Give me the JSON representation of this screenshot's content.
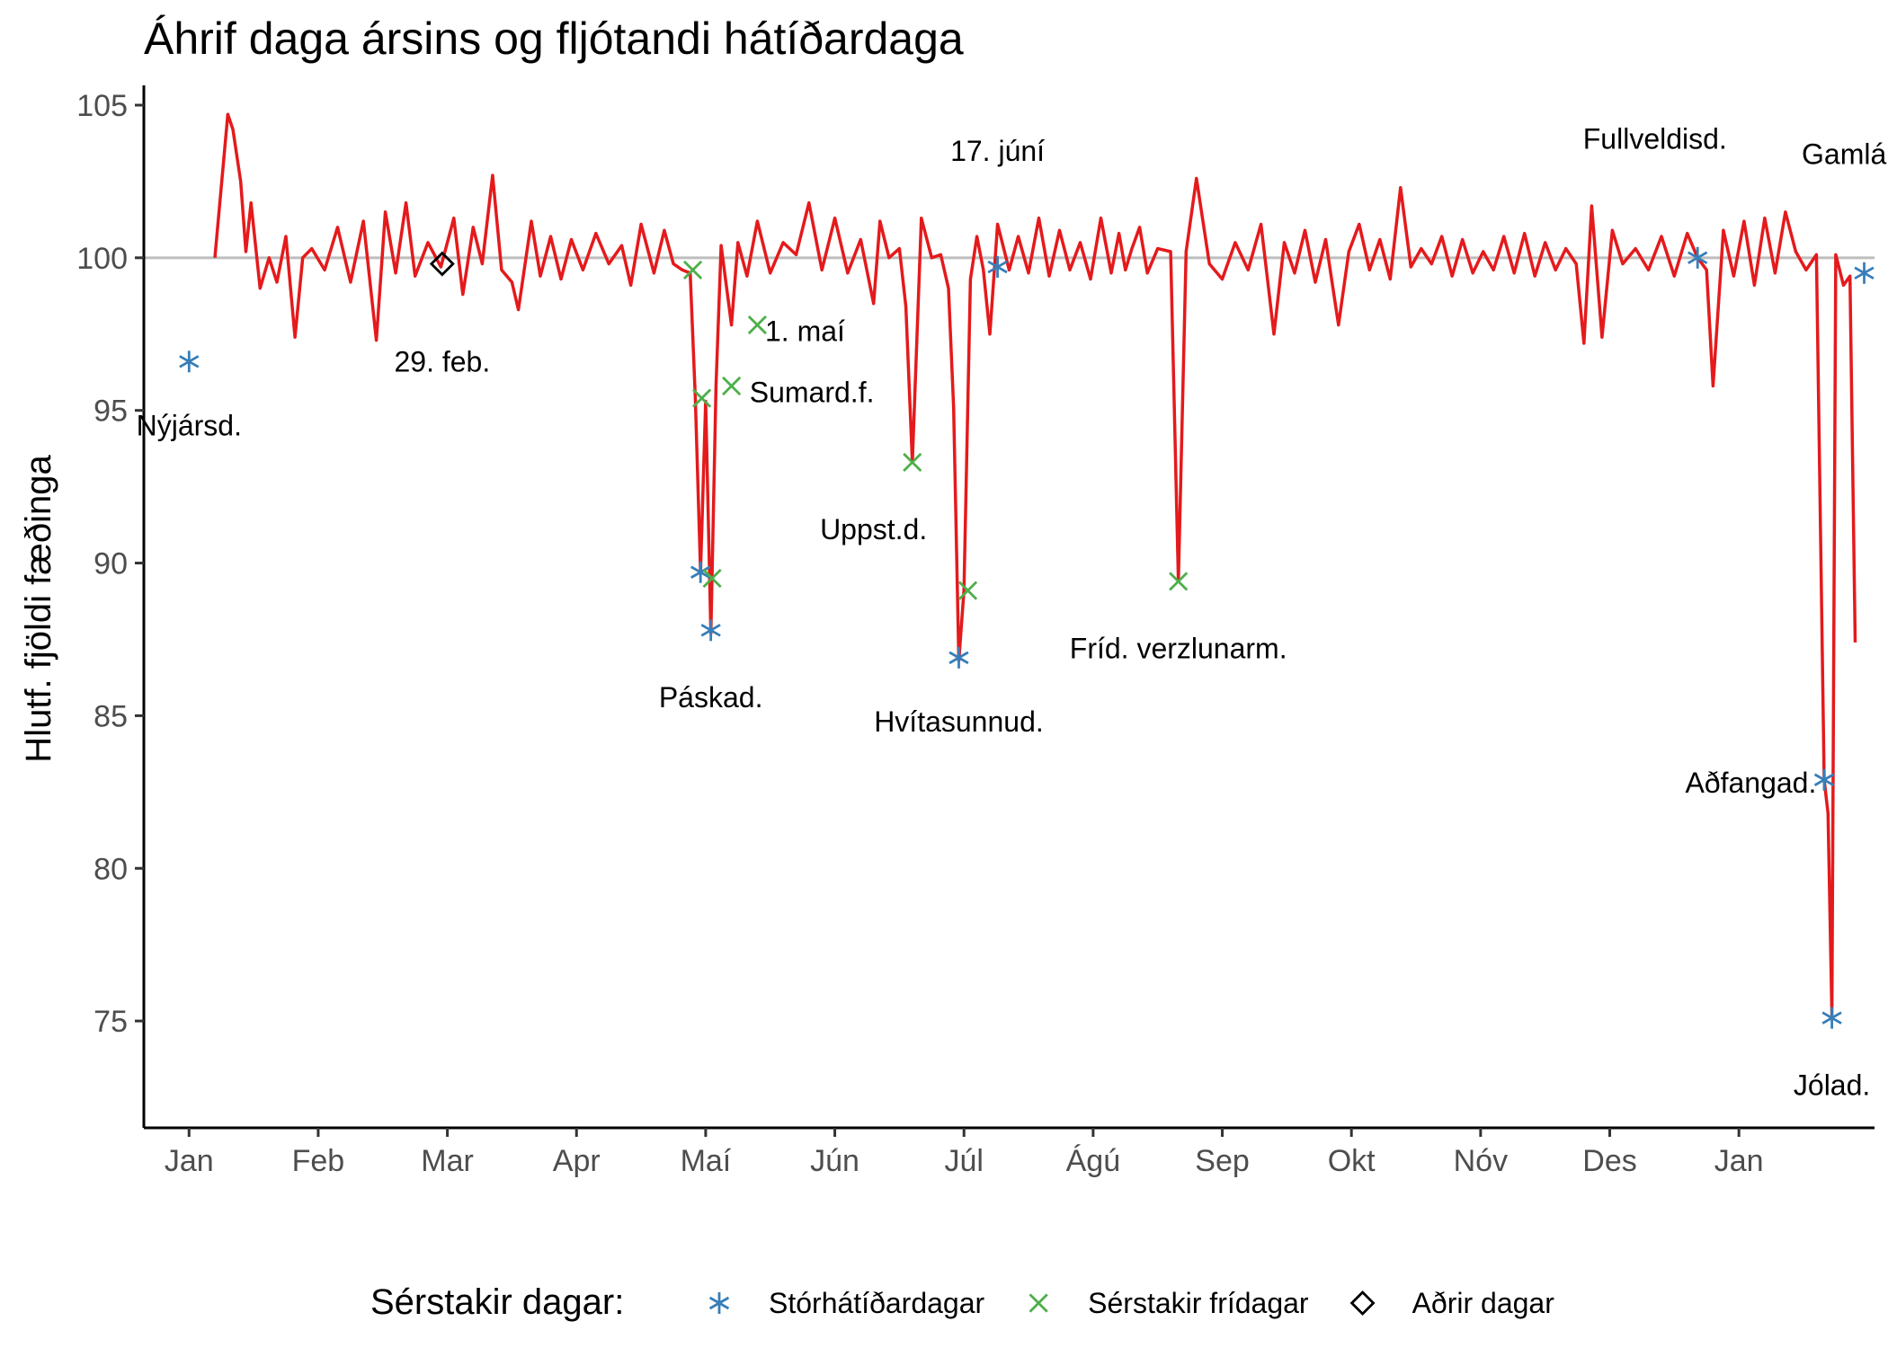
{
  "chart_data": {
    "type": "line",
    "title": "Áhrif daga ársins og fljótandi hátíðardaga",
    "xlabel": "",
    "ylabel": "Hlutf. fjöldi fæðinga",
    "ylim": [
      71.5,
      105.5
    ],
    "yticks": [
      75,
      80,
      85,
      90,
      95,
      100,
      105
    ],
    "x_domain": [
      -0.35,
      13.05
    ],
    "month_ticks": [
      "Jan",
      "Feb",
      "Mar",
      "Apr",
      "Maí",
      "Jún",
      "Júl",
      "Ágú",
      "Sep",
      "Okt",
      "Nóv",
      "Des",
      "Jan"
    ],
    "reference_line": 100,
    "grid": false,
    "line_color": "#e41a1c",
    "reference_color": "#bebebe",
    "series_points": [
      [
        0.2,
        100
      ],
      [
        0.3,
        104.7
      ],
      [
        0.34,
        104.2
      ],
      [
        0.4,
        102.5
      ],
      [
        0.44,
        100.2
      ],
      [
        0.48,
        101.8
      ],
      [
        0.55,
        99
      ],
      [
        0.62,
        100
      ],
      [
        0.68,
        99.2
      ],
      [
        0.75,
        100.7
      ],
      [
        0.82,
        97.4
      ],
      [
        0.88,
        100
      ],
      [
        0.95,
        100.3
      ],
      [
        1.05,
        99.6
      ],
      [
        1.15,
        101
      ],
      [
        1.25,
        99.2
      ],
      [
        1.35,
        101.2
      ],
      [
        1.45,
        97.3
      ],
      [
        1.52,
        101.5
      ],
      [
        1.6,
        99.5
      ],
      [
        1.68,
        101.8
      ],
      [
        1.75,
        99.4
      ],
      [
        1.85,
        100.5
      ],
      [
        1.95,
        99.7
      ],
      [
        2.05,
        101.3
      ],
      [
        2.12,
        98.8
      ],
      [
        2.2,
        101
      ],
      [
        2.27,
        99.8
      ],
      [
        2.35,
        102.7
      ],
      [
        2.42,
        99.6
      ],
      [
        2.5,
        99.2
      ],
      [
        2.55,
        98.3
      ],
      [
        2.65,
        101.2
      ],
      [
        2.72,
        99.4
      ],
      [
        2.8,
        100.7
      ],
      [
        2.88,
        99.3
      ],
      [
        2.96,
        100.6
      ],
      [
        3.05,
        99.6
      ],
      [
        3.15,
        100.8
      ],
      [
        3.25,
        99.8
      ],
      [
        3.35,
        100.4
      ],
      [
        3.42,
        99.1
      ],
      [
        3.5,
        101.1
      ],
      [
        3.6,
        99.5
      ],
      [
        3.68,
        100.9
      ],
      [
        3.75,
        99.8
      ],
      [
        3.82,
        99.6
      ],
      [
        3.88,
        99.5
      ],
      [
        3.92,
        95.4
      ],
      [
        3.96,
        89.7
      ],
      [
        4.0,
        95.3
      ],
      [
        4.04,
        87.7
      ],
      [
        4.08,
        95.8
      ],
      [
        4.12,
        100.4
      ],
      [
        4.2,
        97.8
      ],
      [
        4.25,
        100.5
      ],
      [
        4.32,
        99.4
      ],
      [
        4.4,
        101.2
      ],
      [
        4.5,
        99.5
      ],
      [
        4.6,
        100.5
      ],
      [
        4.7,
        100.1
      ],
      [
        4.8,
        101.8
      ],
      [
        4.9,
        99.6
      ],
      [
        5.0,
        101.3
      ],
      [
        5.1,
        99.5
      ],
      [
        5.2,
        100.6
      ],
      [
        5.3,
        98.5
      ],
      [
        5.35,
        101.2
      ],
      [
        5.42,
        100
      ],
      [
        5.5,
        100.3
      ],
      [
        5.55,
        98.4
      ],
      [
        5.6,
        93.3
      ],
      [
        5.67,
        101.3
      ],
      [
        5.75,
        100
      ],
      [
        5.82,
        100.1
      ],
      [
        5.88,
        99
      ],
      [
        5.92,
        95.1
      ],
      [
        5.96,
        86.8
      ],
      [
        6.0,
        89.1
      ],
      [
        6.05,
        99.3
      ],
      [
        6.1,
        100.7
      ],
      [
        6.15,
        99.6
      ],
      [
        6.2,
        97.5
      ],
      [
        6.26,
        101.1
      ],
      [
        6.35,
        99.6
      ],
      [
        6.42,
        100.7
      ],
      [
        6.5,
        99.5
      ],
      [
        6.58,
        101.3
      ],
      [
        6.66,
        99.4
      ],
      [
        6.74,
        100.9
      ],
      [
        6.82,
        99.6
      ],
      [
        6.9,
        100.5
      ],
      [
        6.98,
        99.3
      ],
      [
        7.06,
        101.3
      ],
      [
        7.14,
        99.5
      ],
      [
        7.2,
        100.8
      ],
      [
        7.25,
        99.6
      ],
      [
        7.3,
        100.3
      ],
      [
        7.36,
        101
      ],
      [
        7.42,
        99.5
      ],
      [
        7.5,
        100.3
      ],
      [
        7.6,
        100.2
      ],
      [
        7.66,
        89.4
      ],
      [
        7.72,
        100.2
      ],
      [
        7.8,
        102.6
      ],
      [
        7.9,
        99.8
      ],
      [
        8.0,
        99.3
      ],
      [
        8.1,
        100.5
      ],
      [
        8.2,
        99.6
      ],
      [
        8.3,
        101.1
      ],
      [
        8.4,
        97.5
      ],
      [
        8.48,
        100.5
      ],
      [
        8.56,
        99.5
      ],
      [
        8.64,
        100.9
      ],
      [
        8.72,
        99.2
      ],
      [
        8.8,
        100.6
      ],
      [
        8.9,
        97.8
      ],
      [
        8.98,
        100.2
      ],
      [
        9.06,
        101.1
      ],
      [
        9.14,
        99.6
      ],
      [
        9.22,
        100.6
      ],
      [
        9.3,
        99.3
      ],
      [
        9.38,
        102.3
      ],
      [
        9.46,
        99.7
      ],
      [
        9.54,
        100.3
      ],
      [
        9.62,
        99.8
      ],
      [
        9.7,
        100.7
      ],
      [
        9.78,
        99.4
      ],
      [
        9.86,
        100.6
      ],
      [
        9.94,
        99.5
      ],
      [
        10.02,
        100.2
      ],
      [
        10.1,
        99.6
      ],
      [
        10.18,
        100.7
      ],
      [
        10.26,
        99.5
      ],
      [
        10.34,
        100.8
      ],
      [
        10.42,
        99.4
      ],
      [
        10.5,
        100.5
      ],
      [
        10.58,
        99.6
      ],
      [
        10.66,
        100.3
      ],
      [
        10.74,
        99.8
      ],
      [
        10.8,
        97.2
      ],
      [
        10.86,
        101.7
      ],
      [
        10.94,
        97.4
      ],
      [
        11.02,
        100.9
      ],
      [
        11.1,
        99.8
      ],
      [
        11.2,
        100.3
      ],
      [
        11.3,
        99.6
      ],
      [
        11.4,
        100.7
      ],
      [
        11.5,
        99.4
      ],
      [
        11.6,
        100.8
      ],
      [
        11.68,
        100
      ],
      [
        11.75,
        99.6
      ],
      [
        11.8,
        95.8
      ],
      [
        11.88,
        100.9
      ],
      [
        11.96,
        99.4
      ],
      [
        12.04,
        101.2
      ],
      [
        12.12,
        99.1
      ],
      [
        12.2,
        101.3
      ],
      [
        12.28,
        99.5
      ],
      [
        12.36,
        101.5
      ],
      [
        12.44,
        100.2
      ],
      [
        12.52,
        99.6
      ],
      [
        12.6,
        100.1
      ],
      [
        12.66,
        82.9
      ],
      [
        12.69,
        81.8
      ],
      [
        12.72,
        75.2
      ],
      [
        12.75,
        100.1
      ],
      [
        12.81,
        99.1
      ],
      [
        12.86,
        99.4
      ],
      [
        12.9,
        87.4
      ]
    ],
    "series": [
      {
        "name": "Stórhátíðardagar",
        "color": "#377eb8",
        "marker": "asterisk",
        "x": [
          0.0,
          3.96,
          4.04,
          5.96,
          6.26,
          11.68,
          12.66,
          12.72,
          12.97
        ],
        "values": [
          96.6,
          89.7,
          87.8,
          86.9,
          99.7,
          100.0,
          82.9,
          75.1,
          99.5
        ]
      },
      {
        "name": "Sérstakir frídagar",
        "color": "#4daf4a",
        "marker": "cross",
        "x": [
          3.9,
          3.97,
          4.05,
          4.2,
          4.4,
          5.6,
          6.03,
          7.66
        ],
        "values": [
          99.6,
          95.4,
          89.5,
          95.8,
          97.8,
          93.3,
          89.1,
          89.4
        ]
      },
      {
        "name": "Aðrir dagar",
        "color": "#000000",
        "marker": "diamond",
        "x": [
          1.96
        ],
        "values": [
          99.8
        ]
      }
    ],
    "annotations": [
      {
        "text": "Nýjársd.",
        "x": 0.0,
        "y": 94.5,
        "anchor": "middle"
      },
      {
        "text": "29. feb.",
        "x": 1.96,
        "y": 96.6,
        "anchor": "middle"
      },
      {
        "text": "Páskad.",
        "x": 4.04,
        "y": 85.6,
        "anchor": "middle"
      },
      {
        "text": "1. maí",
        "x": 4.46,
        "y": 97.6,
        "anchor": "start"
      },
      {
        "text": "Sumard.f.",
        "x": 4.34,
        "y": 95.6,
        "anchor": "start"
      },
      {
        "text": "Uppst.d.",
        "x": 5.3,
        "y": 91.1,
        "anchor": "middle"
      },
      {
        "text": "Hvítasunnud.",
        "x": 5.96,
        "y": 84.8,
        "anchor": "middle"
      },
      {
        "text": "17. júní",
        "x": 6.26,
        "y": 103.5,
        "anchor": "middle"
      },
      {
        "text": "Fríd. verzlunarm.",
        "x": 7.66,
        "y": 87.2,
        "anchor": "middle"
      },
      {
        "text": "Fullveldisd.",
        "x": 11.35,
        "y": 103.9,
        "anchor": "middle"
      },
      {
        "text": "Aðfangad.",
        "x": 12.6,
        "y": 82.8,
        "anchor": "end"
      },
      {
        "text": "Gamlársd.",
        "x": 13.0,
        "y": 103.4,
        "anchor": "middle"
      },
      {
        "text": "Jólad.",
        "x": 12.72,
        "y": 72.9,
        "anchor": "middle"
      }
    ],
    "legend": {
      "title": "Sérstakir dagar:",
      "position": "bottom"
    }
  }
}
